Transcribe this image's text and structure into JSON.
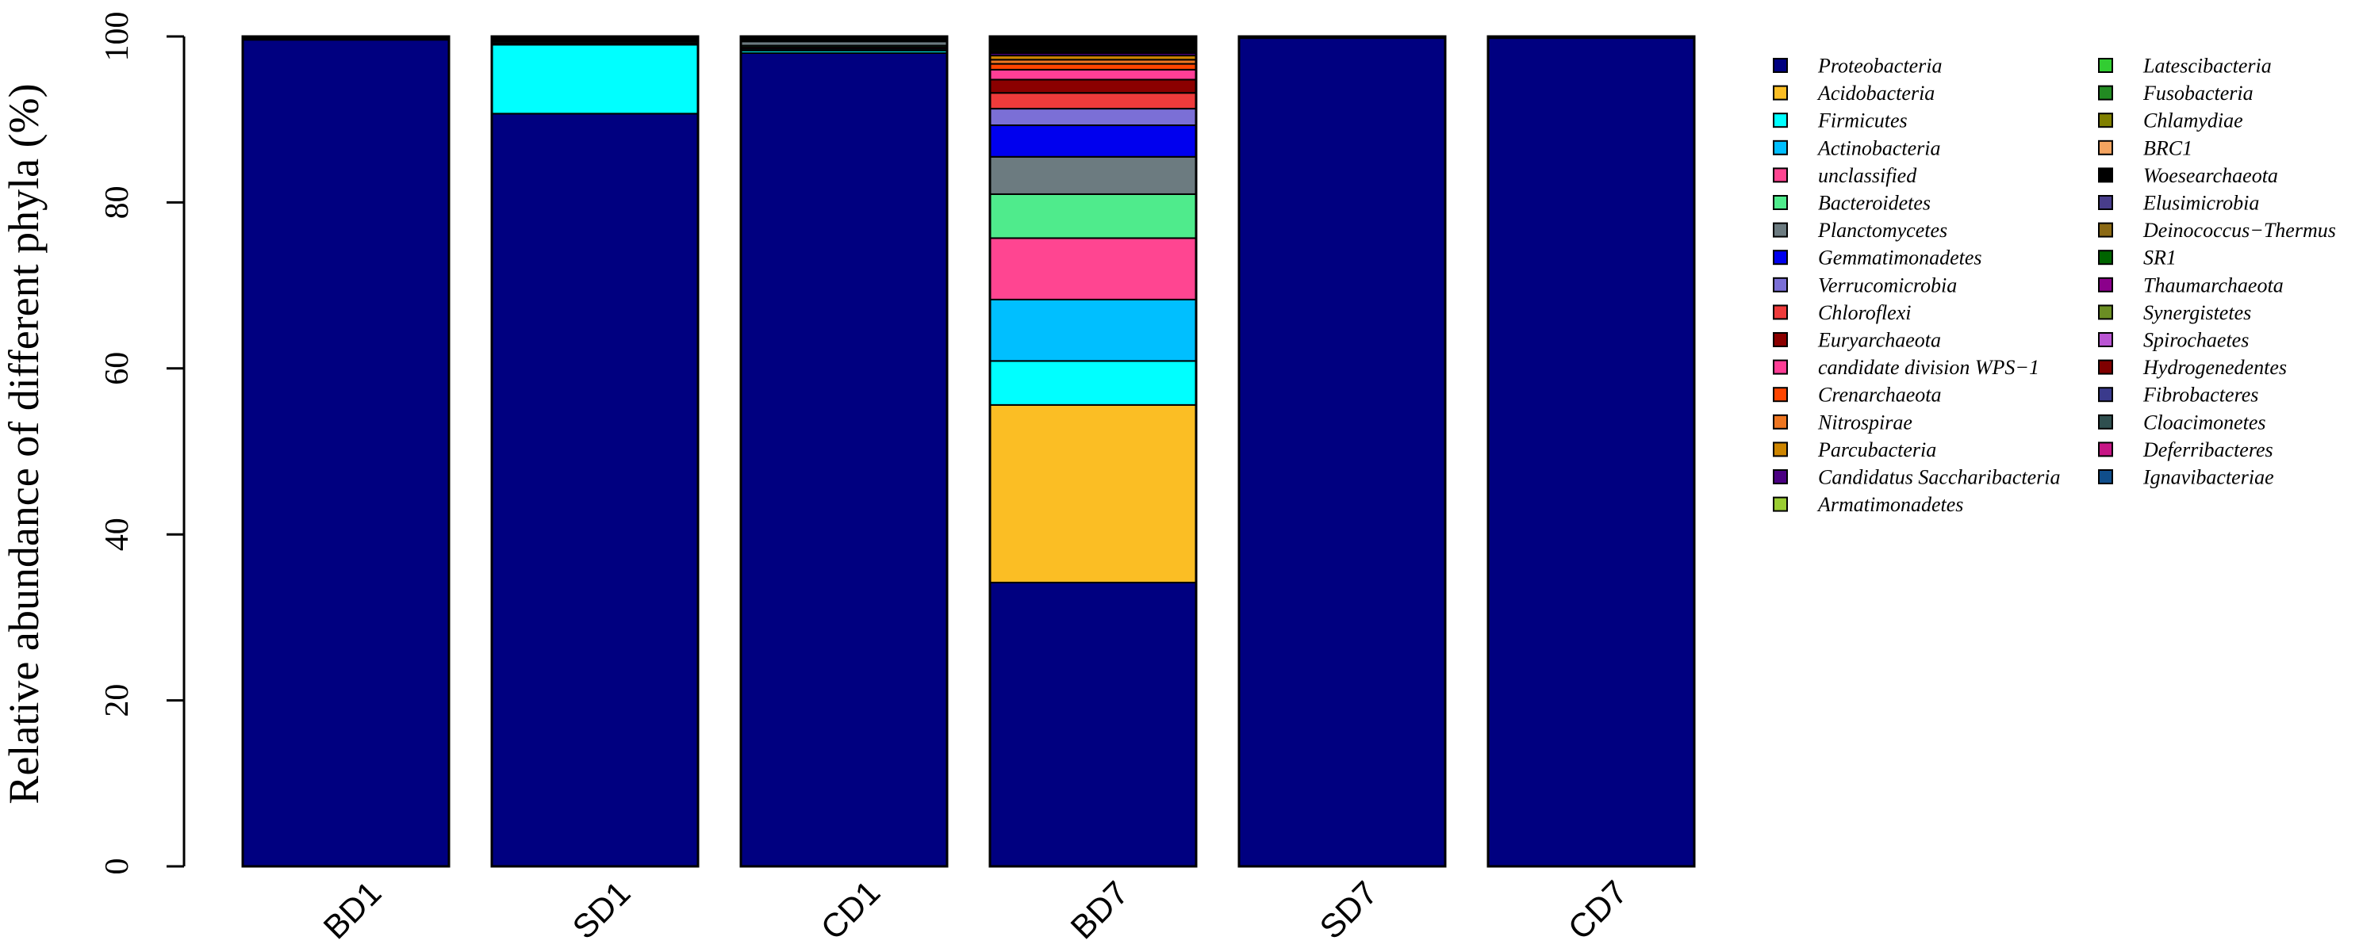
{
  "chart_data": {
    "type": "bar",
    "stacked": true,
    "ylabel": "Relative abundance of different phyla (%)",
    "xlabel": "",
    "ylim": [
      0,
      100
    ],
    "yticks": [
      0,
      20,
      40,
      60,
      80,
      100
    ],
    "categories": [
      "BD1",
      "SD1",
      "CD1",
      "BD7",
      "SD7",
      "CD7"
    ],
    "legend_position": "right",
    "grid": false,
    "series": [
      {
        "name": "Proteobacteria",
        "color": "#000080",
        "values": [
          99.6,
          90.7,
          98.0,
          34.2,
          99.8,
          99.8
        ]
      },
      {
        "name": "Acidobacteria",
        "color": "#FBBE24",
        "values": [
          0,
          0,
          0,
          21.4,
          0,
          0
        ]
      },
      {
        "name": "Firmicutes",
        "color": "#00FFFF",
        "values": [
          0,
          8.3,
          0.3,
          5.3,
          0,
          0
        ]
      },
      {
        "name": "Actinobacteria",
        "color": "#00BFFF",
        "values": [
          0,
          0.1,
          0.2,
          7.4,
          0,
          0
        ]
      },
      {
        "name": "unclassified",
        "color": "#FF4591",
        "values": [
          0.1,
          0.1,
          0.2,
          7.4,
          0.1,
          0.1
        ]
      },
      {
        "name": "Bacteroidetes",
        "color": "#4FEB8C",
        "values": [
          0,
          0.2,
          0.2,
          5.3,
          0,
          0
        ]
      },
      {
        "name": "Planctomycetes",
        "color": "#6C7B80",
        "values": [
          0,
          0.1,
          0.5,
          4.5,
          0,
          0
        ]
      },
      {
        "name": "Gemmatimonadetes",
        "color": "#0000EE",
        "values": [
          0,
          0,
          0,
          3.8,
          0,
          0
        ]
      },
      {
        "name": "Verrucomicrobia",
        "color": "#7B6FD6",
        "values": [
          0,
          0,
          0,
          2.0,
          0,
          0
        ]
      },
      {
        "name": "Chloroflexi",
        "color": "#EE3B3B",
        "values": [
          0,
          0,
          0,
          1.9,
          0,
          0
        ]
      },
      {
        "name": "Euryarchaeota",
        "color": "#8B0000",
        "values": [
          0,
          0,
          0,
          1.6,
          0,
          0
        ]
      },
      {
        "name": "candidate division WPS−1",
        "color": "#FF3E96",
        "values": [
          0,
          0,
          0,
          1.2,
          0,
          0
        ]
      },
      {
        "name": "Crenarchaeota",
        "color": "#FF4500",
        "values": [
          0,
          0,
          0,
          0.7,
          0,
          0
        ]
      },
      {
        "name": "Nitrospirae",
        "color": "#EE7621",
        "values": [
          0,
          0,
          0,
          0.5,
          0,
          0
        ]
      },
      {
        "name": "Parcubacteria",
        "color": "#CD8500",
        "values": [
          0,
          0,
          0,
          0.5,
          0,
          0
        ]
      },
      {
        "name": "Candidatus Saccharibacteria",
        "color": "#4B0082",
        "values": [
          0,
          0,
          0,
          0.3,
          0,
          0
        ]
      },
      {
        "name": "Armatimonadetes",
        "color": "#9ACD32",
        "values": [
          0,
          0,
          0,
          0.2,
          0,
          0
        ]
      },
      {
        "name": "Latescibacteria",
        "color": "#32CD32",
        "values": [
          0,
          0,
          0,
          0.2,
          0,
          0
        ]
      },
      {
        "name": "Fusobacteria",
        "color": "#228B22",
        "values": [
          0,
          0,
          0,
          0.1,
          0,
          0
        ]
      },
      {
        "name": "Chlamydiae",
        "color": "#808000",
        "values": [
          0,
          0,
          0,
          0.1,
          0,
          0
        ]
      },
      {
        "name": "BRC1",
        "color": "#F4A460",
        "values": [
          0,
          0,
          0,
          0.1,
          0,
          0
        ]
      },
      {
        "name": "Woesearchaeota",
        "color": "#000000",
        "values": [
          0.3,
          0.5,
          0.6,
          1.3,
          0.1,
          0.1
        ]
      },
      {
        "name": "Elusimicrobia",
        "color": "#483D8B",
        "values": [
          0,
          0,
          0,
          0,
          0,
          0
        ]
      },
      {
        "name": "Deinococcus−Thermus",
        "color": "#8B6914",
        "values": [
          0,
          0,
          0,
          0,
          0,
          0
        ]
      },
      {
        "name": "SR1",
        "color": "#006400",
        "values": [
          0,
          0,
          0,
          0,
          0,
          0
        ]
      },
      {
        "name": "Thaumarchaeota",
        "color": "#8B008B",
        "values": [
          0,
          0,
          0,
          0,
          0,
          0
        ]
      },
      {
        "name": "Synergistetes",
        "color": "#6B8E23",
        "values": [
          0,
          0,
          0,
          0,
          0,
          0
        ]
      },
      {
        "name": "Spirochaetes",
        "color": "#BA55D3",
        "values": [
          0,
          0,
          0,
          0,
          0,
          0
        ]
      },
      {
        "name": "Hydrogenedentes",
        "color": "#800000",
        "values": [
          0,
          0,
          0,
          0,
          0,
          0
        ]
      },
      {
        "name": "Fibrobacteres",
        "color": "#3A3A8C",
        "values": [
          0,
          0,
          0,
          0,
          0,
          0
        ]
      },
      {
        "name": "Cloacimonetes",
        "color": "#2F4F4F",
        "values": [
          0,
          0,
          0,
          0,
          0,
          0
        ]
      },
      {
        "name": "Deferribacteres",
        "color": "#C71585",
        "values": [
          0,
          0,
          0,
          0,
          0,
          0
        ]
      },
      {
        "name": "Ignavibacteriae",
        "color": "#104E8B",
        "values": [
          0,
          0,
          0,
          0,
          0,
          0
        ]
      }
    ]
  }
}
